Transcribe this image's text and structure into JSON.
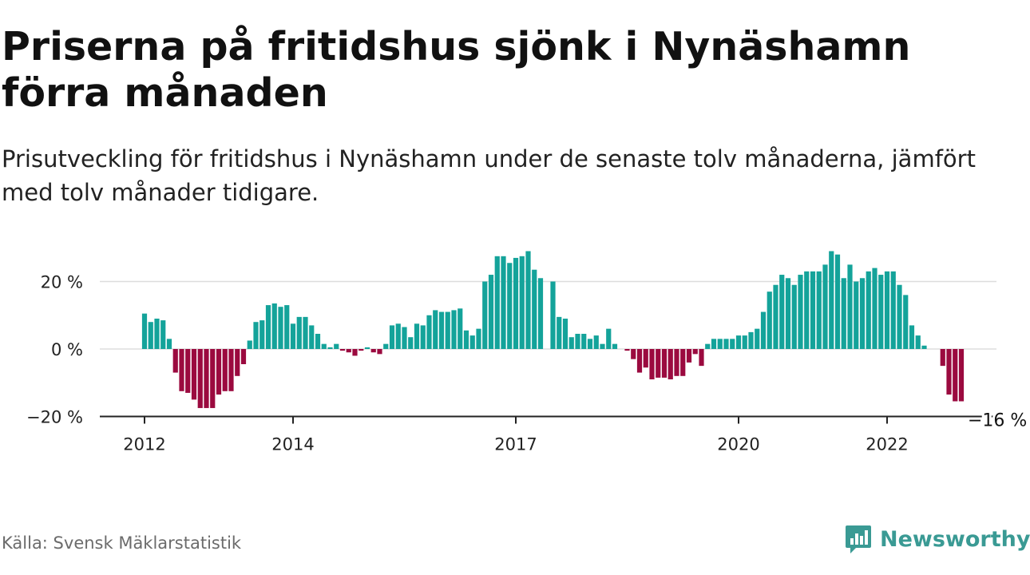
{
  "header": {
    "title": "Priserna på fritidshus sjönk i Nynäshamn förra månaden",
    "subtitle": "Prisutveckling för fritidshus i Nynäshamn under de senaste tolv månaderna, jämfört med tolv månader tidigare."
  },
  "footer": {
    "source": "Källa: Svensk Mäklarstatistik",
    "brand": "Newsworthy"
  },
  "colors": {
    "positive": "#14a39a",
    "negative": "#9b0a3f",
    "brand": "#3a9a94",
    "grid": "#dddddd"
  },
  "chart_data": {
    "type": "bar",
    "y_ticks": [
      {
        "value": 20,
        "label": "20 %"
      },
      {
        "value": 0,
        "label": "0 %"
      },
      {
        "value": -20,
        "label": "−20 %"
      }
    ],
    "x_ticks": [
      {
        "index": 0,
        "label": "2012"
      },
      {
        "index": 24,
        "label": "2014"
      },
      {
        "index": 60,
        "label": "2017"
      },
      {
        "index": 96,
        "label": "2020"
      },
      {
        "index": 120,
        "label": "2022"
      }
    ],
    "ylim": [
      -20,
      30
    ],
    "last_value_label": "−16 %",
    "values": [
      10.5,
      8,
      9,
      8.5,
      3,
      -7,
      -12.5,
      -13,
      -15,
      -17.5,
      -17.5,
      -17.5,
      -13.5,
      -12.5,
      -12.5,
      -8,
      -4.5,
      2.5,
      8,
      8.5,
      13,
      13.5,
      12.5,
      13,
      7.5,
      9.5,
      9.5,
      7,
      4.5,
      1.5,
      0.5,
      1.5,
      -0.5,
      -1,
      -2,
      -0.5,
      0.5,
      -1,
      -1.5,
      1.5,
      7,
      7.5,
      6.5,
      3.5,
      7.5,
      7,
      10,
      11.5,
      11,
      11,
      11.5,
      12,
      5.5,
      4,
      6,
      20,
      22,
      27.5,
      27.5,
      25.5,
      27,
      27.5,
      29,
      23.5,
      21,
      0,
      20,
      9.5,
      9,
      3.5,
      4.5,
      4.5,
      3,
      4,
      1.5,
      6,
      1.5,
      0,
      -0.5,
      -3,
      -7,
      -5.5,
      -9,
      -8.5,
      -8.5,
      -9,
      -8,
      -8,
      -4,
      -1.5,
      -5,
      1.5,
      3,
      3,
      3,
      3,
      4,
      4,
      5,
      6,
      11,
      17,
      19,
      22,
      21,
      19,
      22,
      23,
      23,
      23,
      25,
      29,
      28,
      21,
      25,
      20,
      21,
      23,
      24,
      22,
      23,
      23,
      19,
      16,
      7,
      4,
      1,
      0,
      0,
      -5,
      -13.5,
      -15.5,
      -15.5
    ]
  }
}
